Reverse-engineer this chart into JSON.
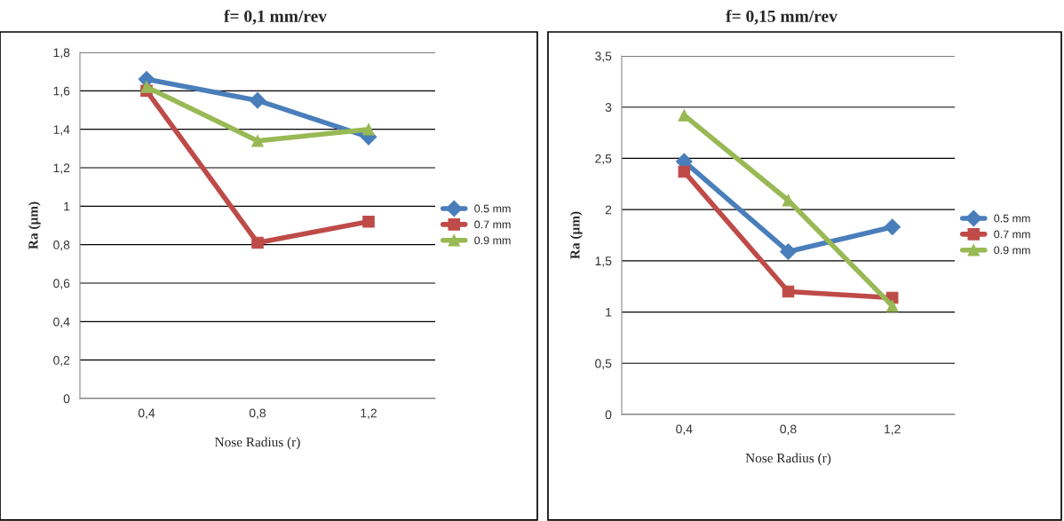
{
  "chart_data": [
    {
      "type": "line",
      "title": "f= 0,1 mm/rev",
      "xlabel": "Nose Radius (r)",
      "ylabel": "Ra (µm)",
      "categories": [
        "0,4",
        "0,8",
        "1,2"
      ],
      "series": [
        {
          "name": "0.5 mm",
          "color": "#4a7ebb",
          "marker": "diamond",
          "values": [
            1.66,
            1.55,
            1.36
          ]
        },
        {
          "name": "0.7 mm",
          "color": "#be4b48",
          "marker": "square",
          "values": [
            1.6,
            0.81,
            0.92
          ]
        },
        {
          "name": "0.9 mm",
          "color": "#98b954",
          "marker": "triangle",
          "values": [
            1.62,
            1.34,
            1.4
          ]
        }
      ],
      "ylim": [
        0,
        1.8
      ],
      "yticks": [
        0,
        {
          "value": 0.2,
          "label": "0,2"
        },
        {
          "value": 0.4,
          "label": "0,4"
        },
        {
          "value": 0.6,
          "label": "0,6"
        },
        {
          "value": 0.8,
          "label": "0,8"
        },
        1,
        {
          "value": 1.2,
          "label": "1,2"
        },
        {
          "value": 1.4,
          "label": "1,4"
        },
        {
          "value": 1.6,
          "label": "1,6"
        },
        {
          "value": 1.8,
          "label": "1,8"
        }
      ],
      "grid": "y",
      "legend": "right",
      "line_style": "solid"
    },
    {
      "type": "line",
      "title": "f= 0,15 mm/rev",
      "xlabel": "Nose Radius (r)",
      "ylabel": "Ra (µm)",
      "categories": [
        "0,4",
        "0,8",
        "1,2"
      ],
      "series": [
        {
          "name": "0.5 mm",
          "color": "#4a7ebb",
          "marker": "diamond",
          "values": [
            2.47,
            1.59,
            1.83
          ]
        },
        {
          "name": "0.7 mm",
          "color": "#be4b48",
          "marker": "square",
          "values": [
            2.37,
            1.2,
            1.14
          ]
        },
        {
          "name": "0.9 mm",
          "color": "#98b954",
          "marker": "triangle",
          "values": [
            2.92,
            2.09,
            1.06
          ]
        }
      ],
      "ylim": [
        0,
        3.5
      ],
      "yticks": [
        0,
        {
          "value": 0.5,
          "label": "0,5"
        },
        1,
        {
          "value": 1.5,
          "label": "1,5"
        },
        2,
        {
          "value": 2.5,
          "label": "2,5"
        },
        3,
        {
          "value": 3.5,
          "label": "3,5"
        }
      ],
      "grid": "y",
      "legend": "right",
      "line_style": "solid"
    }
  ]
}
